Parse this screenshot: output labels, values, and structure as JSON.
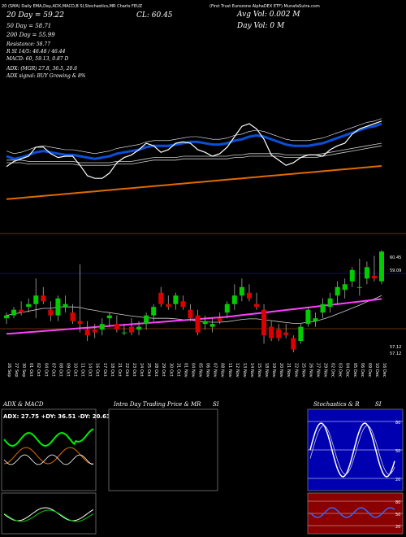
{
  "header": {
    "strip": "20 (SMA) Daily EMA,Day,ADX,MACD,B   SI,Stochastics,MR      Charts FEUZ",
    "ticker_full": "(First Trust Eurozone AlphaDEX ETF) MunafaSutra.com",
    "close_label": "CL: 60.45",
    "avg_vol": "Avg Vol: 0.002  M",
    "day_vol": "Day Vol: 0   M",
    "sma20": "20  Day  = 59.22",
    "sma50": "50  Day  = 58.71",
    "sma200": "200  Day  = 55.99",
    "resistance": "Resistance: 58.77",
    "r_si": "R          SI 14/5: 46.48  / 46.44",
    "macd": "MACD: 60, 59.13,  0.87 D",
    "adx": "ADX:                                   (MGR) 27.8,  36.5,  20.6",
    "adx_signal": "ADX  signal:                          BUY Growing & 8%",
    "price_hi": "60.45",
    "price_mid": "59.09",
    "price_lo1": "57.12",
    "price_lo2": "57.12"
  },
  "dates": [
    "26 Sep",
    "27 Sep",
    "30 Sep",
    "01 Oct",
    "02 Oct",
    "04 Oct",
    "07 Oct",
    "08 Oct",
    "09 Oct",
    "10 Oct",
    "11 Oct",
    "14 Oct",
    "16 Oct",
    "17 Oct",
    "18 Oct",
    "21 Oct",
    "22 Oct",
    "23 Oct",
    "24 Oct",
    "25 Oct",
    "28 Oct",
    "29 Oct",
    "30 Oct",
    "31 Oct",
    "01 Nov",
    "04 Nov",
    "05 Nov",
    "06 Nov",
    "07 Nov",
    "08 Nov",
    "11 Nov",
    "12 Nov",
    "13 Nov",
    "14 Nov",
    "15 Nov",
    "18 Nov",
    "19 Nov",
    "20 Nov",
    "21 Nov",
    "22 Nov",
    "25 Nov",
    "26 Nov",
    "27 Nov",
    "29 Nov",
    "02 Dec",
    "03 Dec",
    "04 Dec",
    "05 Dec",
    "06 Dec",
    "09 Dec",
    "10 Dec",
    "16 Dec"
  ],
  "chart_data": {
    "type": "candlestick",
    "ohlc": [
      [
        58.1,
        58.3,
        57.9,
        58.2
      ],
      [
        58.2,
        58.5,
        58.1,
        58.4
      ],
      [
        58.4,
        58.7,
        58.2,
        58.3
      ],
      [
        58.5,
        58.8,
        58.3,
        58.6
      ],
      [
        58.6,
        59.5,
        58.1,
        58.9
      ],
      [
        58.9,
        59.2,
        58.6,
        58.7
      ],
      [
        58.4,
        58.7,
        58.0,
        58.2
      ],
      [
        58.2,
        58.9,
        58.0,
        58.8
      ],
      [
        58.5,
        58.9,
        58.3,
        58.6
      ],
      [
        58.3,
        58.6,
        57.9,
        58.0
      ],
      [
        58.0,
        60.0,
        57.6,
        57.9
      ],
      [
        57.7,
        58.0,
        57.3,
        57.5
      ],
      [
        57.7,
        57.9,
        57.4,
        57.6
      ],
      [
        57.7,
        58.1,
        57.5,
        57.9
      ],
      [
        58.1,
        58.3,
        57.8,
        58.2
      ],
      [
        57.9,
        58.2,
        57.6,
        57.7
      ],
      [
        57.6,
        57.9,
        57.5,
        57.6
      ],
      [
        57.8,
        58.1,
        57.5,
        57.6
      ],
      [
        57.7,
        58.0,
        57.5,
        57.8
      ],
      [
        57.9,
        58.3,
        57.7,
        58.2
      ],
      [
        58.2,
        58.6,
        58.0,
        58.5
      ],
      [
        59.0,
        59.2,
        58.5,
        58.6
      ],
      [
        58.6,
        58.9,
        58.4,
        58.5
      ],
      [
        58.6,
        59.0,
        58.4,
        58.9
      ],
      [
        58.7,
        58.9,
        58.4,
        58.5
      ],
      [
        58.4,
        58.6,
        58.0,
        58.1
      ],
      [
        58.2,
        58.4,
        57.5,
        57.6
      ],
      [
        57.9,
        58.2,
        57.7,
        58.0
      ],
      [
        57.8,
        58.1,
        57.6,
        57.9
      ],
      [
        58.1,
        58.3,
        57.9,
        58.0
      ],
      [
        58.3,
        58.7,
        58.1,
        58.6
      ],
      [
        58.6,
        59.3,
        58.4,
        58.9
      ],
      [
        58.9,
        59.5,
        58.7,
        59.2
      ],
      [
        59.0,
        59.3,
        58.7,
        58.8
      ],
      [
        58.6,
        59.0,
        58.4,
        58.5
      ],
      [
        58.4,
        58.6,
        57.2,
        57.5
      ],
      [
        57.8,
        58.0,
        57.3,
        57.4
      ],
      [
        57.7,
        57.9,
        57.3,
        57.4
      ],
      [
        57.6,
        57.9,
        57.4,
        57.5
      ],
      [
        57.4,
        57.5,
        56.9,
        57.0
      ],
      [
        57.3,
        57.9,
        57.2,
        57.8
      ],
      [
        57.9,
        58.5,
        57.8,
        58.4
      ],
      [
        58.0,
        58.3,
        57.8,
        58.1
      ],
      [
        58.3,
        58.8,
        58.1,
        58.6
      ],
      [
        58.5,
        59.0,
        58.3,
        58.8
      ],
      [
        58.9,
        59.4,
        58.6,
        59.2
      ],
      [
        59.1,
        59.5,
        58.8,
        59.3
      ],
      [
        59.4,
        59.9,
        59.2,
        59.8
      ],
      [
        59.2,
        60.2,
        58.9,
        59.2
      ],
      [
        59.5,
        60.1,
        59.3,
        59.9
      ],
      [
        59.6,
        60.3,
        59.4,
        59.5
      ],
      [
        59.4,
        60.5,
        59.3,
        60.45
      ]
    ],
    "ylim": [
      56.7,
      61.0
    ],
    "series": [
      {
        "name": "",
        "color": "#d0d0d0",
        "values": [
          58.2,
          58.25,
          58.3,
          58.35,
          58.4,
          58.45,
          58.45,
          58.5,
          58.5,
          58.5,
          58.48,
          58.42,
          58.38,
          58.33,
          58.3,
          58.26,
          58.22,
          58.18,
          58.15,
          58.12,
          58.1,
          58.1,
          58.1,
          58.08,
          58.05,
          58.04,
          58.0,
          57.97,
          57.96,
          57.96,
          57.98,
          58.02,
          58.06,
          58.08,
          58.08,
          58.05,
          58.02,
          57.98,
          57.95,
          57.92,
          57.92,
          57.96,
          58.0,
          58.07,
          58.15,
          58.25,
          58.35,
          58.46,
          58.56,
          58.68,
          58.78,
          58.9
        ]
      },
      {
        "name": "",
        "color": "#ff40ff",
        "values": [
          57.55,
          57.57,
          57.59,
          57.61,
          57.63,
          57.65,
          57.67,
          57.69,
          57.71,
          57.73,
          57.75,
          57.77,
          57.79,
          57.81,
          57.83,
          57.85,
          57.87,
          57.89,
          57.91,
          57.93,
          57.95,
          57.97,
          57.99,
          58.01,
          58.03,
          58.05,
          58.07,
          58.09,
          58.11,
          58.13,
          58.15,
          58.18,
          58.21,
          58.24,
          58.27,
          58.3,
          58.33,
          58.36,
          58.39,
          58.42,
          58.45,
          58.48,
          58.51,
          58.54,
          58.57,
          58.6,
          58.63,
          58.66,
          58.69,
          58.72,
          58.75,
          58.78
        ]
      }
    ],
    "osc": {
      "sma_line": [
        53,
        49,
        47,
        45,
        38,
        38,
        43,
        46,
        45,
        45,
        52,
        60,
        62,
        62,
        58,
        50,
        46,
        44,
        40,
        35,
        37,
        42,
        40,
        35,
        34,
        35,
        40,
        42,
        45,
        43,
        38,
        30,
        22,
        20,
        24,
        32,
        44,
        48,
        52,
        50,
        46,
        44,
        44,
        45,
        40,
        37,
        35,
        28,
        24,
        22,
        20,
        18
      ],
      "ema_short": [
        45,
        47,
        46,
        44,
        42,
        41,
        42,
        43,
        44,
        44,
        45,
        46,
        47,
        46,
        45,
        43,
        42,
        41,
        40,
        38,
        37,
        37,
        37,
        36,
        35,
        34,
        34,
        35,
        36,
        36,
        35,
        33,
        32,
        30,
        29,
        30,
        32,
        34,
        36,
        37,
        37,
        37,
        36,
        35,
        33,
        31,
        29,
        27,
        25,
        23,
        22,
        20
      ],
      "ema_mid": [
        42,
        42,
        42,
        43,
        43,
        43,
        43,
        43,
        43,
        43,
        44,
        44,
        44,
        44,
        44,
        43,
        43,
        43,
        42,
        41,
        40,
        40,
        40,
        40,
        39,
        39,
        39,
        39,
        39,
        39,
        39,
        38,
        38,
        37,
        37,
        37,
        37,
        37,
        38,
        38,
        38,
        38,
        38,
        37,
        36,
        35,
        34,
        33,
        32,
        31,
        30,
        29
      ],
      "ema_long": [
        78,
        77.5,
        77,
        76.5,
        76,
        75.5,
        75,
        74.5,
        74,
        73.5,
        73,
        72.5,
        72,
        71.5,
        71,
        70.5,
        70,
        69.5,
        69,
        68.5,
        68,
        67.5,
        67,
        66.5,
        66,
        65.5,
        65,
        64.5,
        64,
        63.5,
        63,
        62.5,
        62,
        61.5,
        61,
        60.5,
        60,
        59.5,
        59,
        58.5,
        58,
        57.5,
        57,
        56.5,
        56,
        55.5,
        55,
        54.5,
        54,
        53.5,
        53,
        52.5
      ]
    }
  },
  "panels": {
    "adx_title": "ADX  & MACD",
    "adx_readout": "ADX: 27.75  +DY: 36.51  -DY: 20.63",
    "intraday_title": "Intra  Day  Trading  Price  & MR",
    "si_title_mid": "SI",
    "stoch_title": "Stochastics & R",
    "si_title_right": "SI",
    "stoch_levels": [
      "80",
      "50",
      "20"
    ],
    "si_levels": [
      "80",
      "50",
      "20"
    ]
  },
  "colors": {
    "up": "#00cc00",
    "down": "#dd0000",
    "blue": "#0a4fd8",
    "orange": "#e06a00",
    "magenta": "#ff40ff"
  }
}
